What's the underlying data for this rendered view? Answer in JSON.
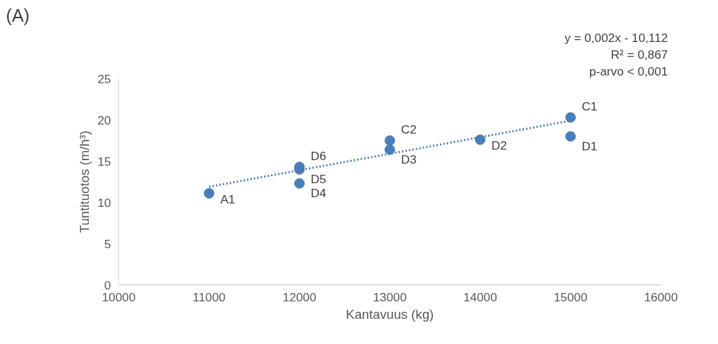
{
  "chart_data": {
    "type": "scatter",
    "title": "(A)",
    "xlabel": "Kantavuus (kg)",
    "ylabel": "Tuntituotos (m/h³)",
    "x": [
      11000,
      12000,
      12000,
      12000,
      13000,
      13000,
      14000,
      15000,
      15000
    ],
    "series": [
      {
        "color": "#4a7ebb",
        "values": [
          11.1,
          12.3,
          14.0,
          14.3,
          16.4,
          17.5,
          17.6,
          18.0,
          20.3
        ]
      },
      {
        "type": "line",
        "color": "#4a7ebb",
        "line_style": "dotted",
        "marker": "none",
        "x": [
          11000,
          15000
        ],
        "values": [
          11.9,
          19.9
        ]
      }
    ],
    "annotations": [
      {
        "text": "A1",
        "x": 11000,
        "y": 11.1
      },
      {
        "text": "D4",
        "x": 12000,
        "y": 12.3
      },
      {
        "text": "D5",
        "x": 12000,
        "y": 14.0
      },
      {
        "text": "D6",
        "x": 12000,
        "y": 14.3
      },
      {
        "text": "D3",
        "x": 13000,
        "y": 16.4
      },
      {
        "text": "C2",
        "x": 13000,
        "y": 17.5
      },
      {
        "text": "D2",
        "x": 14000,
        "y": 17.6
      },
      {
        "text": "D1",
        "x": 15000,
        "y": 18.0
      },
      {
        "text": "C1",
        "x": 15000,
        "y": 20.3
      },
      "y = 0,002x - 10,112",
      "R² = 0,867",
      "p-arvo < 0,001"
    ],
    "xlim": [
      10000,
      16000
    ],
    "xticks": [
      10000,
      11000,
      12000,
      13000,
      14000,
      15000,
      16000
    ],
    "ylim": [
      0,
      25
    ],
    "yticks": [
      0,
      5,
      10,
      15,
      20,
      25
    ],
    "grid": false,
    "marker": "circle"
  }
}
